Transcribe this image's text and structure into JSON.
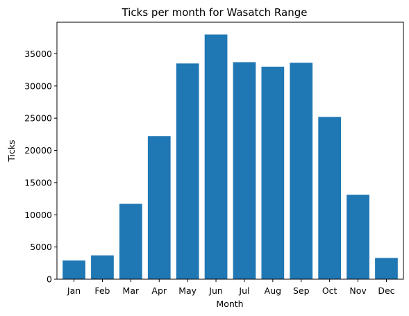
{
  "chart_data": {
    "type": "bar",
    "title": "Ticks per month for Wasatch Range",
    "xlabel": "Month",
    "ylabel": "Ticks",
    "categories": [
      "Jan",
      "Feb",
      "Mar",
      "Apr",
      "May",
      "Jun",
      "Jul",
      "Aug",
      "Sep",
      "Oct",
      "Nov",
      "Dec"
    ],
    "values": [
      2900,
      3700,
      11700,
      22200,
      33500,
      38000,
      33700,
      33000,
      33600,
      25200,
      13100,
      3300
    ],
    "ylim": [
      0,
      39900
    ],
    "yticks": [
      0,
      5000,
      10000,
      15000,
      20000,
      25000,
      30000,
      35000
    ],
    "grid": false,
    "colors": {
      "bar": "#1f77b4"
    }
  }
}
